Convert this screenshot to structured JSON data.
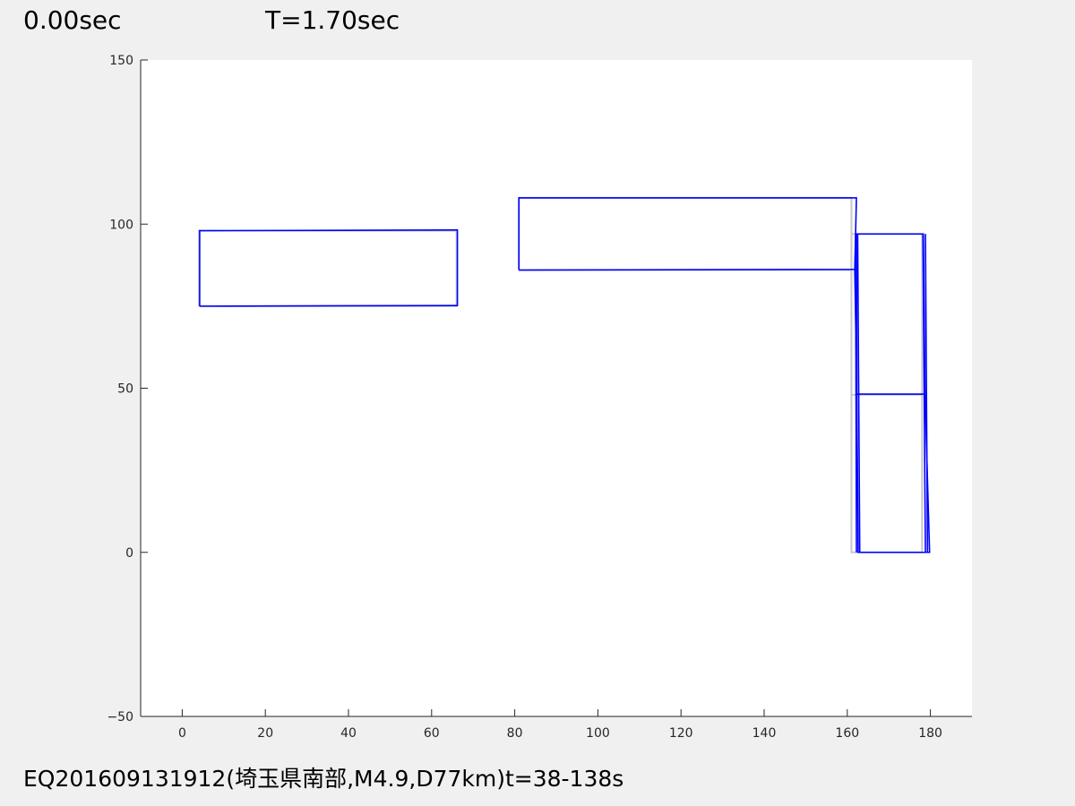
{
  "header": {
    "time_label": "0.00sec",
    "period_label": "T=1.70sec"
  },
  "caption": "EQ201609131912(埼玉県南部,M4.9,D77km)t=38-138s",
  "chart_data": {
    "type": "line",
    "title": "",
    "xlabel": "",
    "ylabel": "",
    "xlim": [
      -10,
      190
    ],
    "ylim": [
      -50,
      150
    ],
    "xticks": [
      0,
      20,
      40,
      60,
      80,
      100,
      120,
      140,
      160,
      180
    ],
    "yticks": [
      -50,
      0,
      50,
      100,
      150
    ],
    "grid": false,
    "colors": {
      "undeformed": "#c8c8c8",
      "deformed": "#0000ff",
      "axes_bg": "#ffffff",
      "figure_bg": "#f0f0f0"
    },
    "series": [
      {
        "style": "undeformed",
        "lines": [
          [
            [
              4,
              75
            ],
            [
              66,
              75
            ],
            [
              66,
              98
            ],
            [
              4,
              98
            ],
            [
              4,
              75
            ]
          ],
          [
            [
              81,
              86
            ],
            [
              161,
              86
            ],
            [
              161,
              108
            ],
            [
              81,
              108
            ],
            [
              81,
              86
            ]
          ],
          [
            [
              161,
              86
            ],
            [
              161,
              0
            ],
            [
              178,
              0
            ],
            [
              178,
              97
            ],
            [
              161,
              97
            ]
          ],
          [
            [
              161,
              48
            ],
            [
              178,
              48
            ]
          ]
        ]
      },
      {
        "style": "deformed",
        "lines": [
          [
            [
              4.2,
              75
            ],
            [
              66.2,
              75.2
            ],
            [
              66.2,
              98.2
            ],
            [
              4.2,
              98
            ],
            [
              4.2,
              75
            ]
          ],
          [
            [
              81,
              86
            ],
            [
              161.8,
              86.2
            ],
            [
              162.2,
              108
            ],
            [
              81,
              108
            ],
            [
              81,
              86
            ]
          ],
          [
            [
              161.8,
              86.2
            ],
            [
              162.3,
              48.2
            ],
            [
              162.6,
              0
            ],
            [
              179.8,
              0
            ],
            [
              178.7,
              48.2
            ],
            [
              178.3,
              97
            ],
            [
              162.2,
              97
            ],
            [
              162.3,
              48.2
            ],
            [
              178.7,
              48.2
            ]
          ],
          [
            [
              162.5,
              97
            ],
            [
              163,
              0
            ]
          ],
          [
            [
              178.8,
              97
            ],
            [
              179.3,
              0
            ]
          ],
          [
            [
              162,
              97
            ],
            [
              162.2,
              0
            ]
          ],
          [
            [
              178.2,
              97
            ],
            [
              178.8,
              0
            ]
          ]
        ]
      }
    ]
  }
}
